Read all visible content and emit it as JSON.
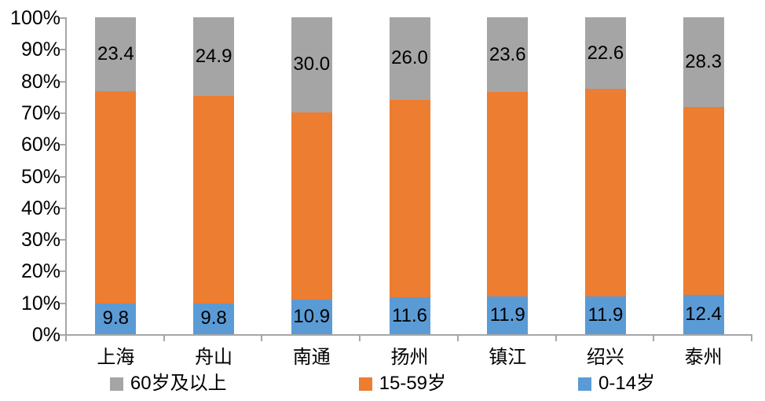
{
  "chart_data": {
    "type": "bar",
    "variant": "stacked-100-percent",
    "title": "",
    "xlabel": "",
    "ylabel": "",
    "unit": "%",
    "grid": false,
    "legend_position": "bottom",
    "categories": [
      "上海",
      "舟山",
      "南通",
      "扬州",
      "镇江",
      "绍兴",
      "泰州"
    ],
    "series": [
      {
        "name": "0-14岁",
        "color": "#5B9BD5",
        "values": [
          9.8,
          9.8,
          10.9,
          11.6,
          11.9,
          11.9,
          12.4
        ],
        "labels_shown": true
      },
      {
        "name": "15-59岁",
        "color": "#ED7D31",
        "values": [
          66.8,
          65.3,
          59.1,
          62.4,
          64.5,
          65.5,
          59.3
        ],
        "labels_shown": false
      },
      {
        "name": "60岁及以上",
        "color": "#A5A5A5",
        "values": [
          23.4,
          24.9,
          30.0,
          26.0,
          23.6,
          22.6,
          28.3
        ],
        "labels_shown": true
      }
    ],
    "y_axis": {
      "min": 0,
      "max": 100,
      "step": 10,
      "tick_labels": [
        "0%",
        "10%",
        "20%",
        "30%",
        "40%",
        "50%",
        "60%",
        "70%",
        "80%",
        "90%",
        "100%"
      ]
    },
    "legend": [
      {
        "label": "60岁及以上",
        "color": "#A5A5A5"
      },
      {
        "label": "15-59岁",
        "color": "#ED7D31"
      },
      {
        "label": "0-14岁",
        "color": "#5B9BD5"
      }
    ],
    "colors": {
      "axis": "#A6A6A6",
      "text": "#000000",
      "background": "#FFFFFF"
    }
  }
}
